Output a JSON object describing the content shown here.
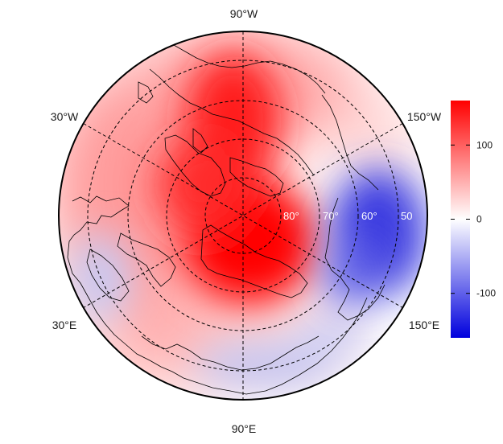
{
  "map": {
    "longitude_labels": [
      {
        "text": "90°W",
        "lon": -90
      },
      {
        "text": "150°W",
        "lon": -150
      },
      {
        "text": "150°E",
        "lon": 150
      },
      {
        "text": "90°E",
        "lon": 90
      },
      {
        "text": "30°E",
        "lon": 30
      },
      {
        "text": "30°W",
        "lon": -30
      }
    ],
    "latitude_labels": [
      {
        "text": "80°",
        "lat": 80
      },
      {
        "text": "70°",
        "lat": 70
      },
      {
        "text": "60°",
        "lat": 60
      },
      {
        "text": "50",
        "lat": 50
      }
    ],
    "colors": {
      "high": "#ff0000",
      "mid": "#ffffff",
      "low": "#0000dd"
    }
  },
  "colorbar": {
    "min": -160,
    "max": 160,
    "ticks": [
      {
        "value": 100,
        "label": "100"
      },
      {
        "value": 0,
        "label": "0"
      },
      {
        "value": -100,
        "label": "-100"
      }
    ]
  }
}
